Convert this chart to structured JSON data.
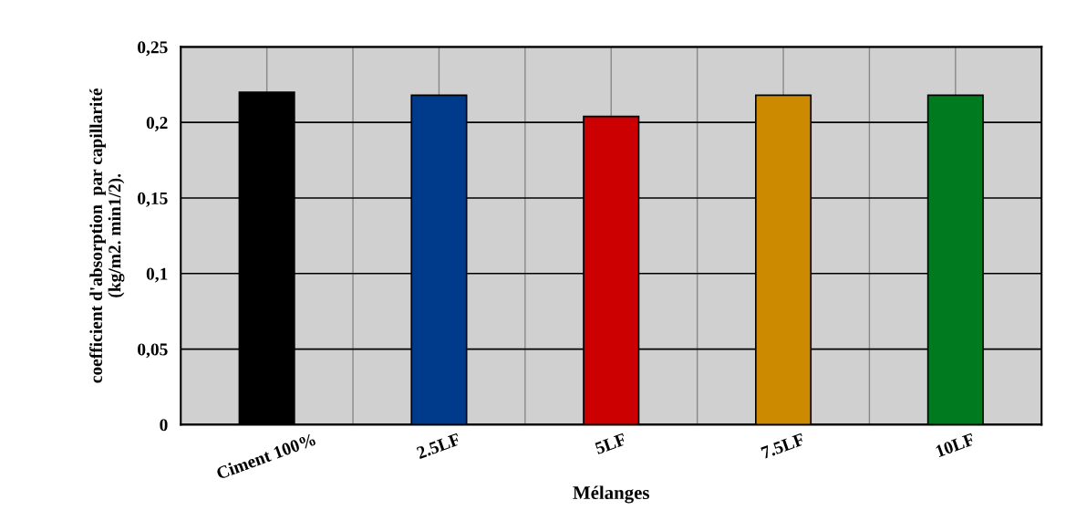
{
  "chart_data": {
    "type": "bar",
    "xlabel": "Mélanges",
    "ylabel": "coefficient d'absorption  par capillarité\n(kg/m2. min1/2).",
    "categories": [
      "Ciment 100%",
      "2.5LF",
      "5LF",
      "7.5LF",
      "10LF"
    ],
    "values": [
      0.22,
      0.218,
      0.204,
      0.218,
      0.218
    ],
    "colors": [
      "#000000",
      "#003a8a",
      "#cc0000",
      "#cc8a00",
      "#007a1e"
    ],
    "ylim": [
      0,
      0.25
    ],
    "yticks": [
      0,
      {
        "value": 0.05,
        "label": "0,05"
      },
      {
        "value": 0.1,
        "label": "0,1"
      },
      {
        "value": 0.15,
        "label": "0,15"
      },
      {
        "value": 0.2,
        "label": "0,2"
      },
      {
        "value": 0.25,
        "label": "0,25"
      }
    ],
    "grid": true
  }
}
